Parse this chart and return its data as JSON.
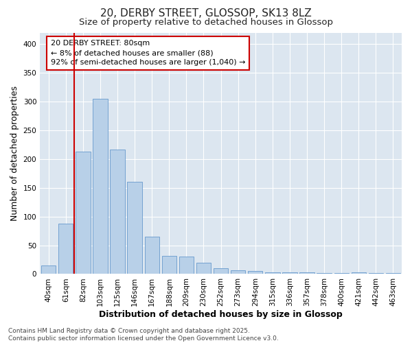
{
  "title_line1": "20, DERBY STREET, GLOSSOP, SK13 8LZ",
  "title_line2": "Size of property relative to detached houses in Glossop",
  "xlabel": "Distribution of detached houses by size in Glossop",
  "ylabel": "Number of detached properties",
  "bar_color": "#b8d0e8",
  "bar_edge_color": "#6699cc",
  "fig_background_color": "#ffffff",
  "plot_background_color": "#dce6f0",
  "categories": [
    "40sqm",
    "61sqm",
    "82sqm",
    "103sqm",
    "125sqm",
    "146sqm",
    "167sqm",
    "188sqm",
    "209sqm",
    "230sqm",
    "252sqm",
    "273sqm",
    "294sqm",
    "315sqm",
    "336sqm",
    "357sqm",
    "378sqm",
    "400sqm",
    "421sqm",
    "442sqm",
    "463sqm"
  ],
  "values": [
    15,
    88,
    213,
    305,
    217,
    160,
    65,
    31,
    30,
    20,
    10,
    6,
    5,
    3,
    3,
    3,
    2,
    2,
    3,
    2,
    2
  ],
  "vline_index": 2,
  "vline_color": "#cc0000",
  "annotation_title": "20 DERBY STREET: 80sqm",
  "annotation_line2": "← 8% of detached houses are smaller (88)",
  "annotation_line3": "92% of semi-detached houses are larger (1,040) →",
  "annotation_box_color": "#ffffff",
  "annotation_border_color": "#cc0000",
  "footer_line1": "Contains HM Land Registry data © Crown copyright and database right 2025.",
  "footer_line2": "Contains public sector information licensed under the Open Government Licence v3.0.",
  "ylim": [
    0,
    420
  ],
  "yticks": [
    0,
    50,
    100,
    150,
    200,
    250,
    300,
    350,
    400
  ],
  "grid_color": "#ffffff",
  "title_fontsize": 11,
  "subtitle_fontsize": 9.5,
  "axis_label_fontsize": 9,
  "tick_fontsize": 7.5,
  "annotation_fontsize": 8,
  "footer_fontsize": 6.5
}
